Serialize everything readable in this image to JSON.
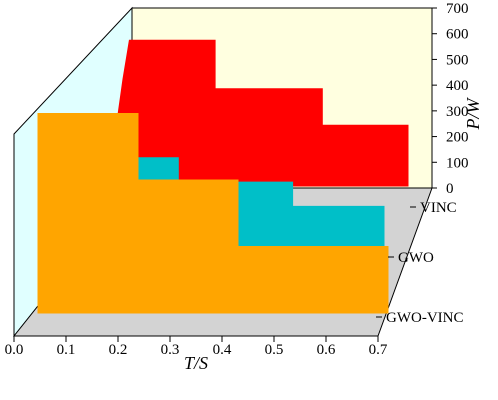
{
  "chart_data": {
    "type": "area",
    "title": "",
    "xlabel": "T/S",
    "ylabel": "P/W",
    "xlim": [
      0.0,
      0.7
    ],
    "ylim": [
      0,
      700
    ],
    "x_ticks": [
      "0.0",
      "0.1",
      "0.2",
      "0.3",
      "0.4",
      "0.5",
      "0.6",
      "0.7"
    ],
    "y_ticks": [
      "0",
      "100",
      "200",
      "300",
      "400",
      "500",
      "600",
      "700"
    ],
    "depth_labels": [
      "VINC",
      "GWO",
      "GWO-VINC"
    ],
    "grid": false,
    "legend": "none",
    "series": [
      {
        "name": "VINC",
        "color": "#ff0000",
        "x": [
          0.0,
          0.035,
          0.05,
          0.25,
          0.25,
          0.5,
          0.5,
          0.7
        ],
        "y": [
          0,
          440,
          600,
          600,
          400,
          400,
          250,
          250
        ]
      },
      {
        "name": "GWO",
        "color": "#00bfc8",
        "x": [
          0.0,
          0.05,
          0.05,
          0.25,
          0.25,
          0.5,
          0.5,
          0.7
        ],
        "y": [
          0,
          0,
          400,
          400,
          300,
          300,
          200,
          200
        ]
      },
      {
        "name": "GWO-VINC",
        "color": "#ffa500",
        "x": [
          0.0,
          0.0,
          0.2,
          0.2,
          0.4,
          0.4,
          0.7
        ],
        "y": [
          0,
          600,
          600,
          400,
          400,
          200,
          200
        ]
      }
    ]
  }
}
